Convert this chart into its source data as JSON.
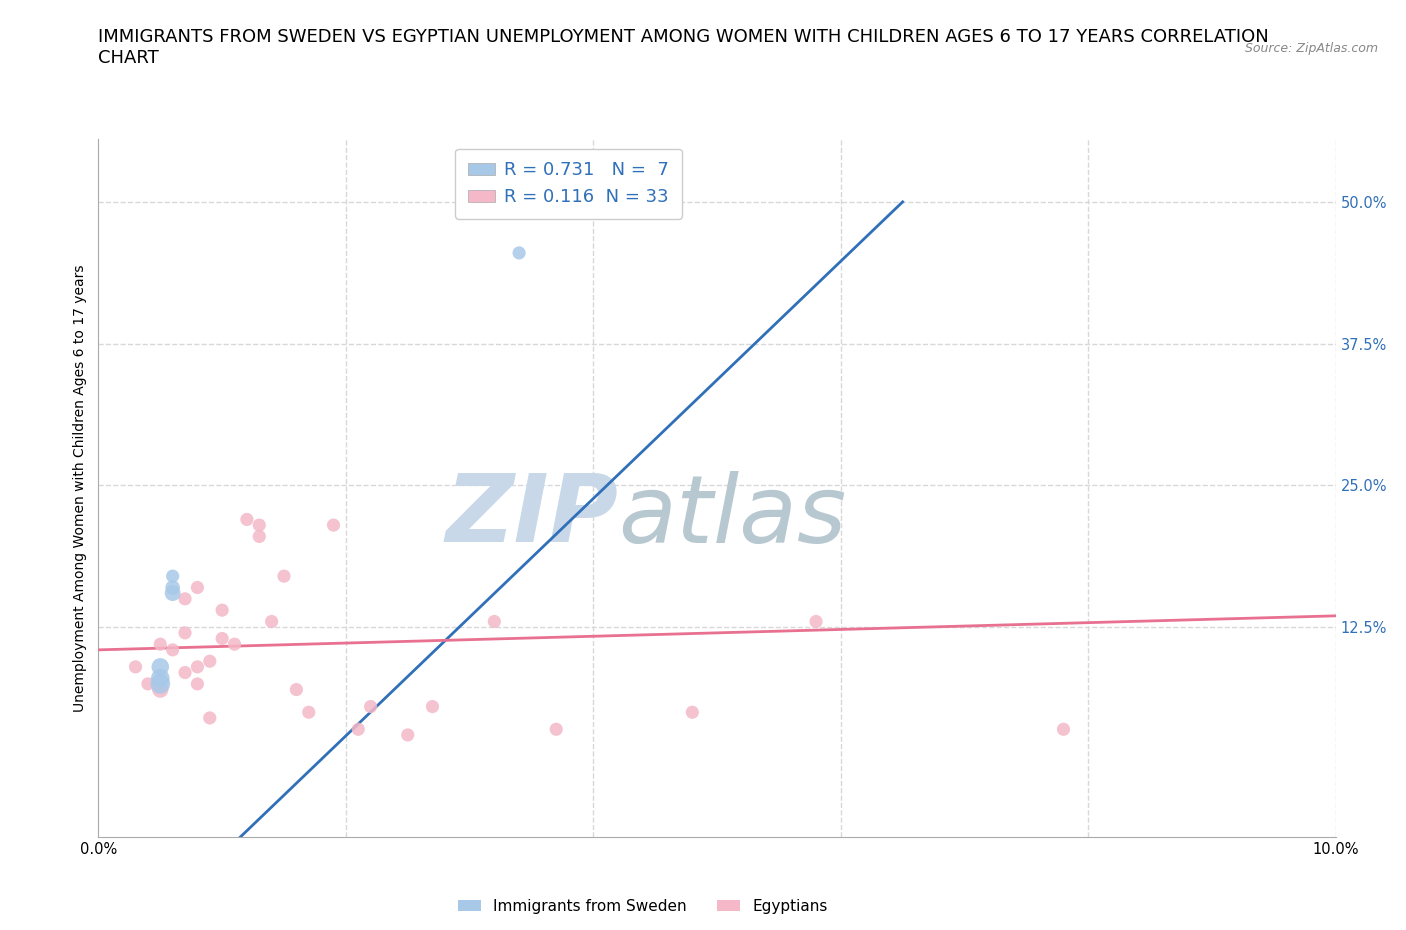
{
  "title": "IMMIGRANTS FROM SWEDEN VS EGYPTIAN UNEMPLOYMENT AMONG WOMEN WITH CHILDREN AGES 6 TO 17 YEARS CORRELATION\nCHART",
  "source_text": "Source: ZipAtlas.com",
  "ylabel": "Unemployment Among Women with Children Ages 6 to 17 years",
  "xlim": [
    0.0,
    0.1
  ],
  "ylim": [
    -0.06,
    0.555
  ],
  "yticks": [
    0.125,
    0.25,
    0.375,
    0.5
  ],
  "ytick_labels": [
    "12.5%",
    "25.0%",
    "37.5%",
    "50.0%"
  ],
  "xticks": [
    0.0,
    0.02,
    0.04,
    0.06,
    0.08,
    0.1
  ],
  "xtick_labels": [
    "0.0%",
    "",
    "",
    "",
    "",
    "10.0%"
  ],
  "blue_R": 0.731,
  "blue_N": 7,
  "pink_R": 0.116,
  "pink_N": 33,
  "blue_color": "#a8c8e8",
  "pink_color": "#f4b8c8",
  "blue_line_color": "#3070b8",
  "pink_line_color": "#e87090",
  "background_color": "#ffffff",
  "watermark_zip_color": "#c8d8e8",
  "watermark_atlas_color": "#b8c8d0",
  "grid_color": "#d8d8d8",
  "sweden_points_x": [
    0.005,
    0.005,
    0.005,
    0.006,
    0.006,
    0.006,
    0.034
  ],
  "sweden_points_y": [
    0.075,
    0.08,
    0.09,
    0.155,
    0.16,
    0.17,
    0.455
  ],
  "egypt_points_x": [
    0.003,
    0.004,
    0.005,
    0.005,
    0.006,
    0.007,
    0.007,
    0.007,
    0.008,
    0.008,
    0.008,
    0.009,
    0.009,
    0.01,
    0.01,
    0.011,
    0.012,
    0.013,
    0.013,
    0.014,
    0.015,
    0.016,
    0.017,
    0.019,
    0.021,
    0.022,
    0.025,
    0.027,
    0.032,
    0.037,
    0.048,
    0.058,
    0.078
  ],
  "egypt_points_y": [
    0.09,
    0.075,
    0.07,
    0.11,
    0.105,
    0.085,
    0.12,
    0.15,
    0.075,
    0.09,
    0.16,
    0.045,
    0.095,
    0.115,
    0.14,
    0.11,
    0.22,
    0.205,
    0.215,
    0.13,
    0.17,
    0.07,
    0.05,
    0.215,
    0.035,
    0.055,
    0.03,
    0.055,
    0.13,
    0.035,
    0.05,
    0.13,
    0.035
  ],
  "sweden_sizes": [
    200,
    180,
    160,
    130,
    110,
    90,
    90
  ],
  "egypt_sizes": [
    90,
    90,
    140,
    90,
    90,
    90,
    90,
    90,
    90,
    90,
    90,
    90,
    90,
    90,
    90,
    90,
    90,
    90,
    90,
    90,
    90,
    90,
    90,
    90,
    90,
    90,
    90,
    90,
    90,
    90,
    90,
    90,
    90
  ],
  "blue_line_x": [
    0.0,
    0.065
  ],
  "blue_line_y": [
    -0.18,
    0.5
  ],
  "pink_line_x": [
    0.0,
    0.1
  ],
  "pink_line_y": [
    0.105,
    0.135
  ],
  "title_fontsize": 13,
  "axis_label_fontsize": 10,
  "tick_fontsize": 10.5,
  "legend_fontsize": 13
}
